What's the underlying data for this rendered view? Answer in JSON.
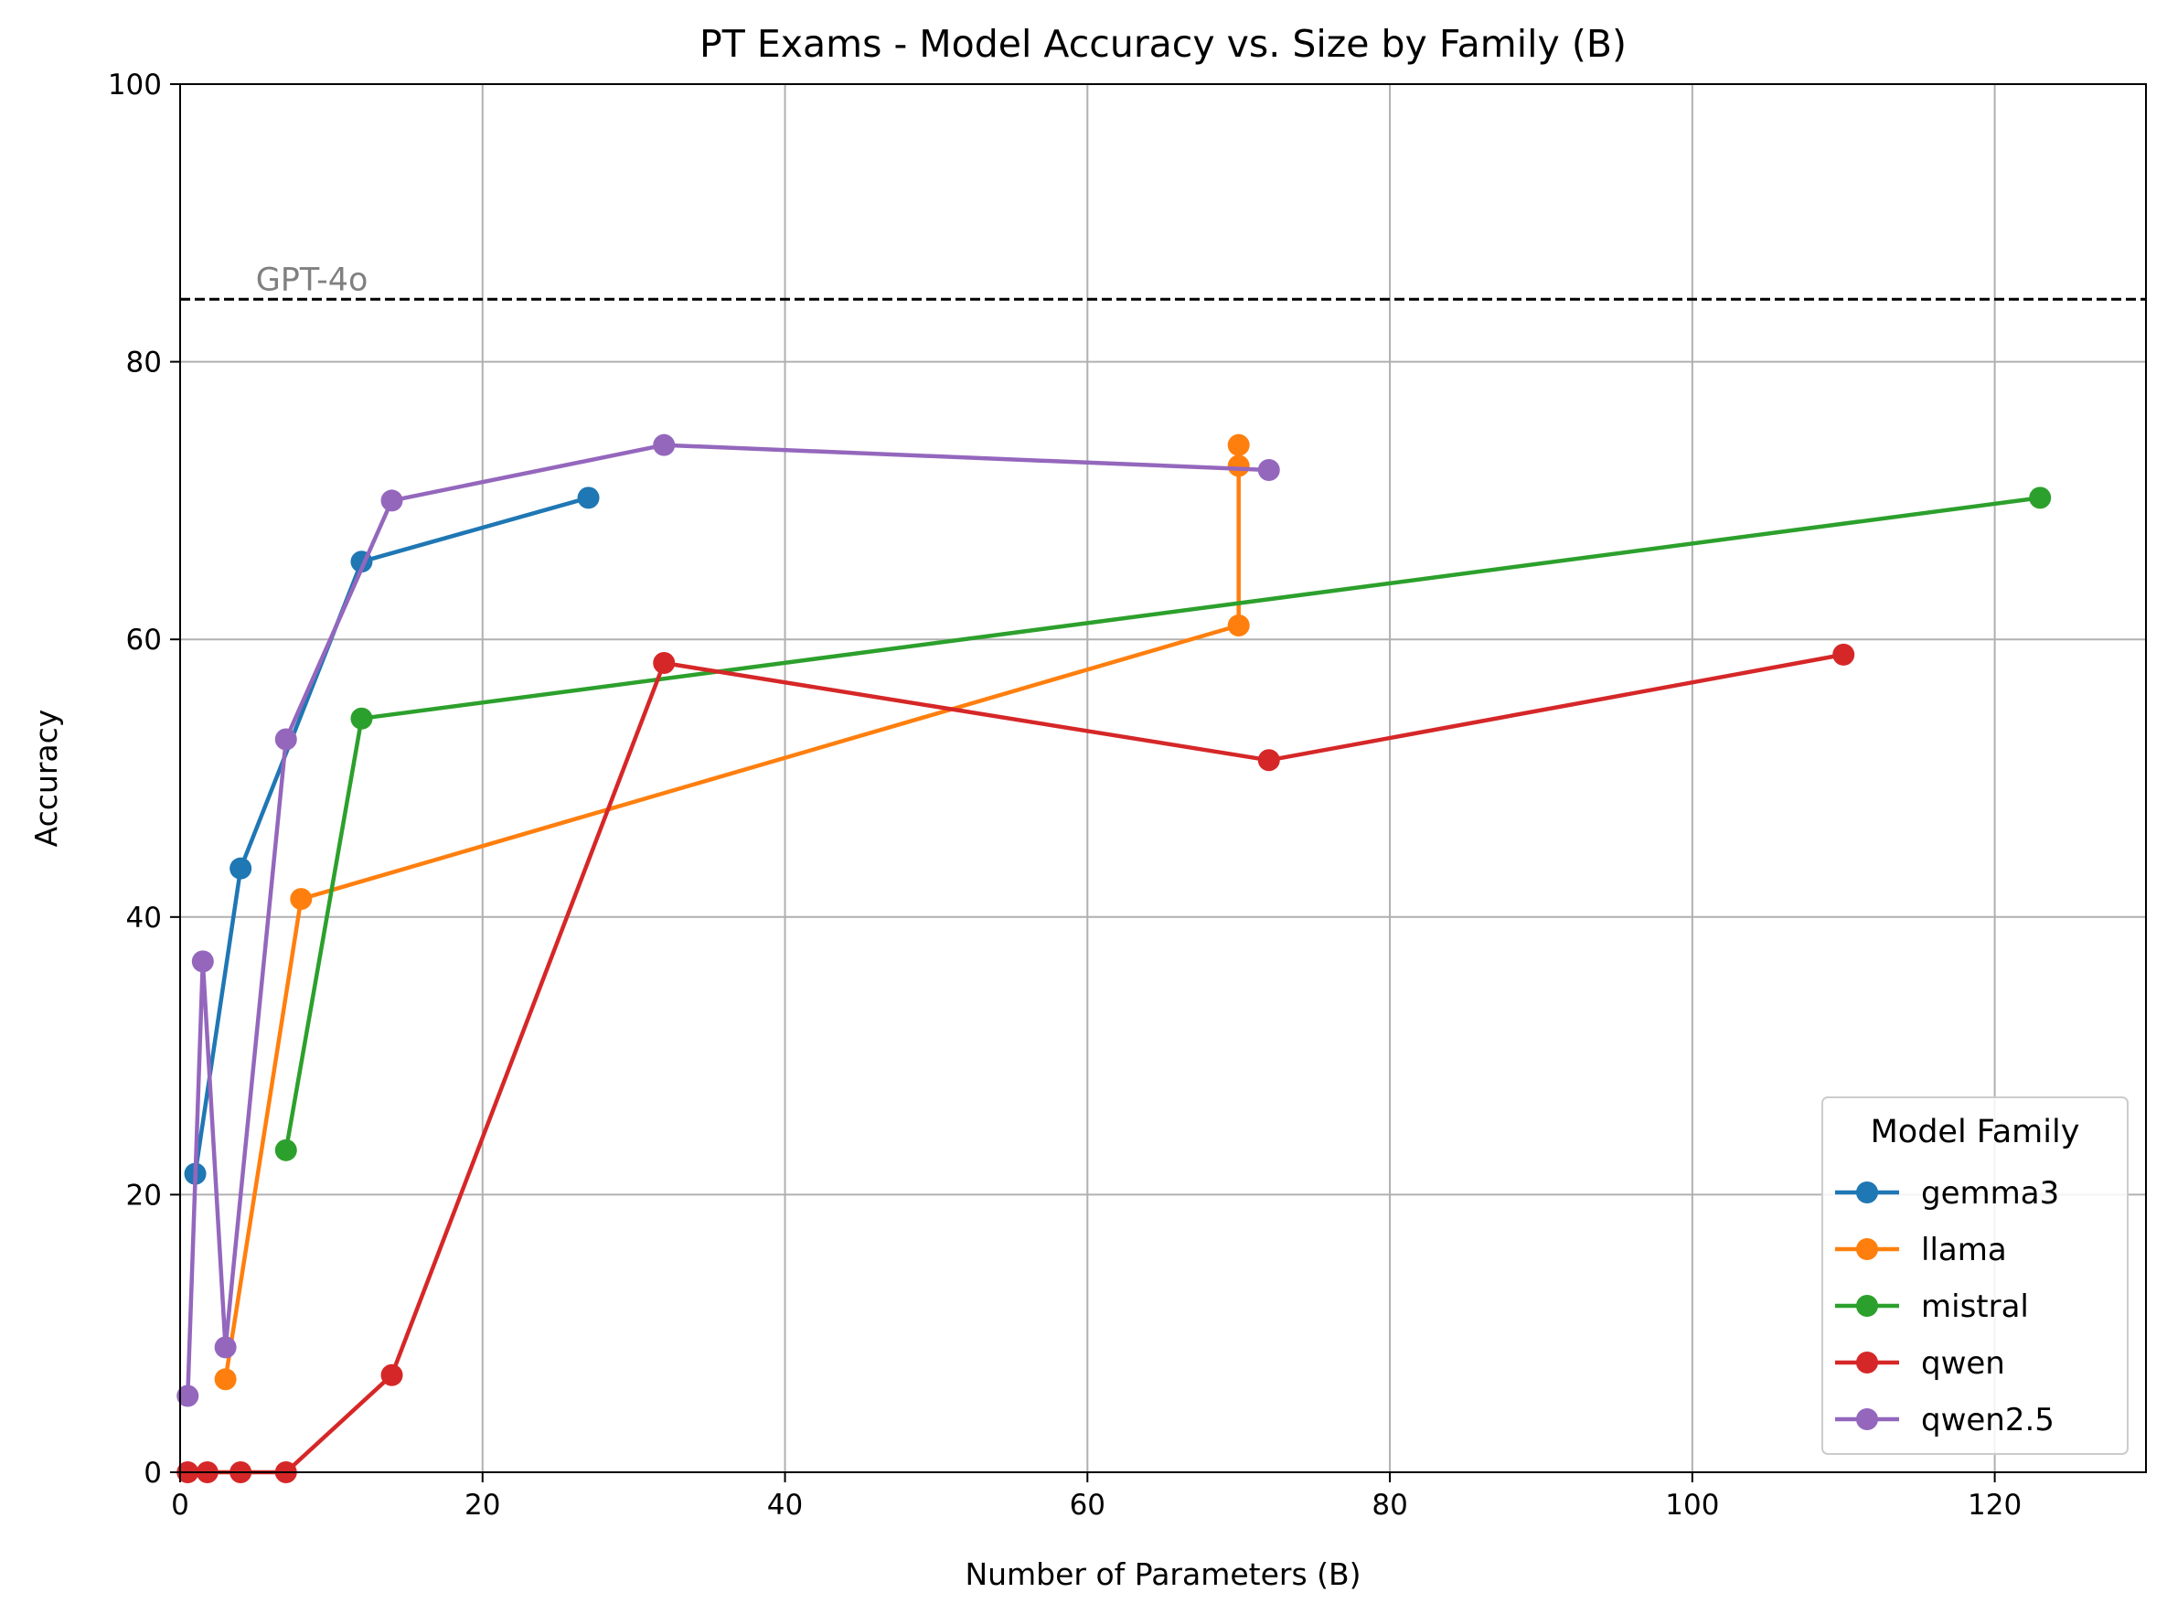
{
  "chart_data": {
    "type": "line",
    "title": "PT Exams - Model Accuracy vs. Size by Family (B)",
    "xlabel": "Number of Parameters (B)",
    "ylabel": "Accuracy",
    "xlim": [
      0,
      130
    ],
    "ylim": [
      0,
      100
    ],
    "xticks": [
      0,
      20,
      40,
      60,
      80,
      100,
      120
    ],
    "yticks": [
      0,
      20,
      40,
      60,
      80,
      100
    ],
    "grid": true,
    "reference_line": {
      "label": "GPT-4o",
      "y": 84.5,
      "style": "dashed",
      "color": "#000000"
    },
    "legend": {
      "title": "Model Family",
      "position": "lower-right"
    },
    "series": [
      {
        "name": "gemma3",
        "color": "#1f77b4",
        "x": [
          1,
          4,
          12,
          27
        ],
        "y": [
          21.5,
          43.5,
          65.6,
          70.2
        ]
      },
      {
        "name": "llama",
        "color": "#ff7f0e",
        "x": [
          3,
          8,
          70,
          70,
          70
        ],
        "y": [
          6.7,
          41.3,
          61.0,
          72.5,
          74.0
        ]
      },
      {
        "name": "mistral",
        "color": "#2ca02c",
        "x": [
          7,
          12,
          123
        ],
        "y": [
          23.2,
          54.3,
          70.2
        ]
      },
      {
        "name": "qwen",
        "color": "#d62728",
        "x": [
          0.5,
          1.8,
          4,
          7,
          14,
          32,
          72,
          110
        ],
        "y": [
          0,
          0,
          0,
          0,
          7.0,
          58.3,
          51.3,
          58.9
        ]
      },
      {
        "name": "qwen2.5",
        "color": "#9467bd",
        "x": [
          0.5,
          1.5,
          3,
          7,
          14,
          32,
          72
        ],
        "y": [
          5.5,
          36.8,
          9.0,
          52.8,
          70.0,
          74.0,
          72.2
        ]
      }
    ]
  }
}
